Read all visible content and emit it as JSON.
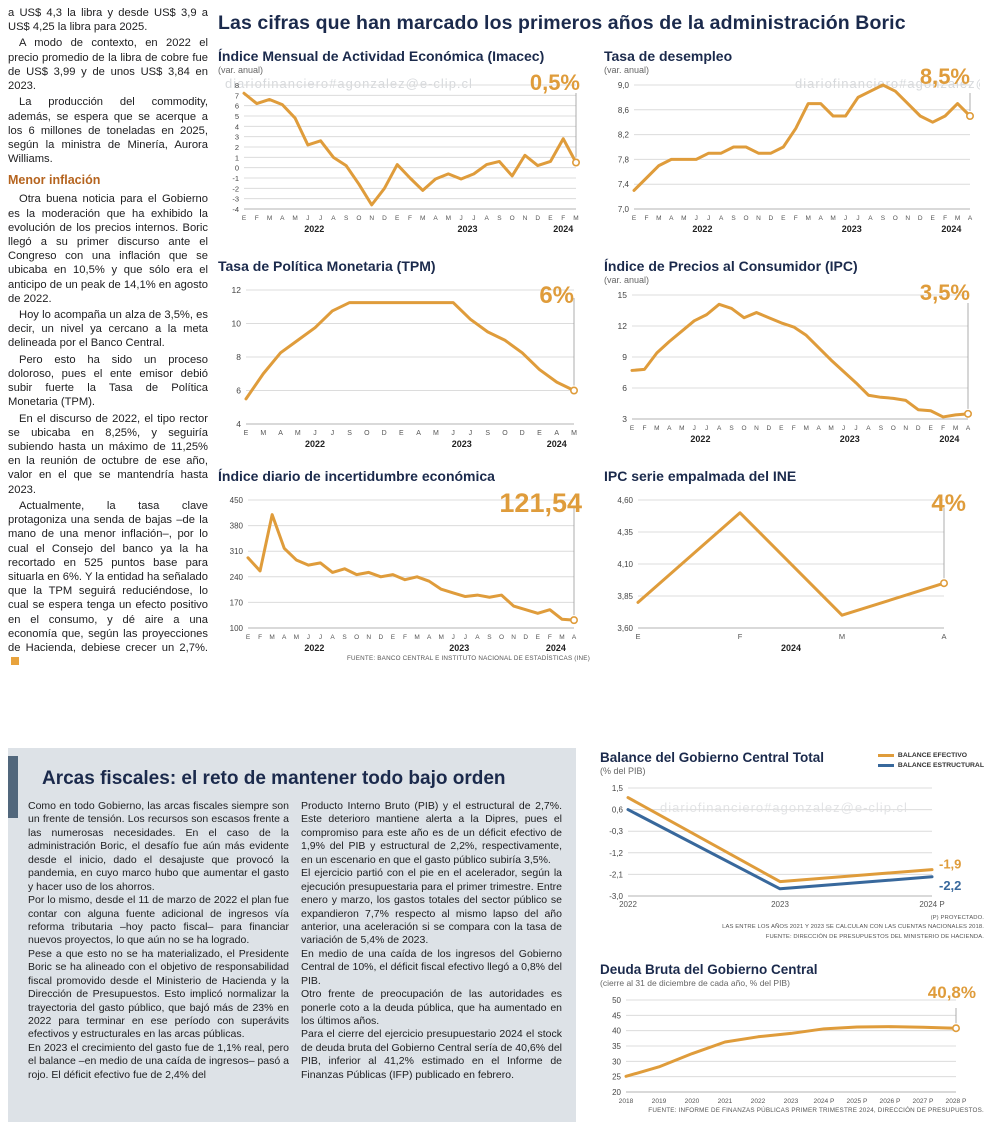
{
  "headline": "Las cifras que han marcado los primeros años de la administración Boric",
  "watermark": "diariofinanciero#agonzalez@e-clip.cl",
  "left_column": {
    "subheading": "Menor inflación",
    "paragraphs": [
      "a US$ 4,3 la libra y desde US$ 3,9 a US$ 4,25 la libra para 2025.",
      "A modo de contexto, en 2022 el precio promedio de la libra de cobre fue de US$ 3,99 y de unos US$ 3,84 en 2023.",
      "La producción del commodity, además, se espera que se acerque a los 6 millones de toneladas en 2025, según la ministra de Minería, Aurora Williams.",
      "Otra buena noticia para el Gobierno es la moderación que ha exhibido la evolución de los precios internos. Boric llegó a su primer discurso ante el Congreso con una inflación que se ubicaba en 10,5% y que sólo era el anticipo de un peak de 14,1% en agosto de 2022.",
      "Hoy lo acompaña un alza de 3,5%, es decir, un nivel ya cercano a la meta delineada por el Banco Central.",
      "Pero esto ha sido un proceso doloroso, pues el ente emisor debió subir fuerte la Tasa de Política Monetaria (TPM).",
      "En el discurso de 2022, el tipo rector se ubicaba en 8,25%, y seguiría subiendo hasta un máximo de 11,25% en la reunión de octubre de ese año, valor en el que se mantendría hasta 2023.",
      "Actualmente, la tasa clave protagoniza una senda de bajas –de la mano de una menor inflación–, por lo cual el Consejo del banco ya la ha recortado en 525 puntos base para situarla en 6%. Y la entidad ha señalado que la TPM seguirá reduciéndose, lo cual se espera tenga un efecto positivo en el consumo, y dé aire a una economía que, según las proyecciones de Hacienda, debiese crecer un 2,7%."
    ]
  },
  "arcas": {
    "title": "Arcas fiscales: el reto de mantener todo bajo orden",
    "col1": [
      "Como en todo Gobierno, las arcas fiscales siempre son un frente de tensión. Los recursos son escasos frente a las numerosas necesidades. En el caso de la administración Boric, el desafío fue aún más evidente desde el inicio, dado el desajuste que provocó la pandemia, en cuyo marco hubo que aumentar el gasto y hacer uso de los ahorros.",
      "Por lo mismo, desde el 11 de marzo de 2022 el plan fue contar con alguna fuente adicional de ingresos vía reforma tributaria –hoy pacto fiscal– para financiar nuevos proyectos, lo que aún no se ha logrado.",
      "Pese a que esto no se ha materializado, el Presidente Boric se ha alineado con el objetivo de responsabilidad fiscal promovido desde el Ministerio de Hacienda y la Dirección de Presupuestos. Esto implicó normalizar la trayectoria del gasto público, que bajó más de 23% en 2022 para terminar en ese período con superávits efectivos y estructurales en las arcas públicas.",
      "En 2023 el crecimiento del gasto fue de 1,1% real, pero el balance –en medio de una caída de ingresos– pasó a rojo. El déficit efectivo fue de 2,4% del"
    ],
    "col2": [
      "Producto Interno Bruto (PIB) y el estructural de 2,7%. Este deterioro mantiene alerta a la Dipres, pues el compromiso para este año es de un déficit efectivo de 1,9% del PIB y estructural de 2,2%, respectivamente, en un escenario en que el gasto público subiría 3,5%.",
      "El ejercicio partió con el pie en el acelerador, según la ejecución presupuestaria para el primer trimestre. Entre enero y marzo, los gastos totales del sector público se expandieron 7,7% respecto al mismo lapso del año anterior, una aceleración si se compara con la tasa de variación de 5,4% de 2023.",
      "En medio de una caída de los ingresos del Gobierno Central de 10%, el déficit fiscal efectivo llegó a 0,8% del PIB.",
      "Otro frente de preocupación de las autoridades es ponerle coto a la deuda pública, que ha aumentado en los últimos años.",
      "Para el cierre del ejercicio presupuestario 2024 el stock de deuda bruta del Gobierno Central sería de 40,6% del PIB, inferior al 41,2% estimado en el Informe de Finanzas Públicas (IFP) publicado en febrero."
    ]
  },
  "legend": {
    "efectivo": "BALANCE EFECTIVO",
    "estructural": "BALANCE ESTRUCTURAL"
  },
  "sources": {
    "top_charts": "FUENTE: BANCO CENTRAL E INSTITUTO NACIONAL DE ESTADÍSTICAS (INE)",
    "balance_note1": "(P) PROYECTADO.",
    "balance_note2": "LAS ENTRE LOS AÑOS 2021 Y 2023 SE CALCULAN CON LAS CUENTAS NACIONALES 2018.",
    "balance_note3": "FUENTE: DIRECCIÓN DE PRESUPUESTOS DEL MINISTERIO DE HACIENDA.",
    "deuda_source": "FUENTE: INFORME DE FINANZAS PÚBLICAS PRIMER TRIMESTRE 2024, DIRECCIÓN DE PRESUPUESTOS."
  },
  "colors": {
    "accent_orange": "#df9c3b",
    "accent_blue": "#38689c",
    "headline_navy": "#1b2a4c",
    "gray_box": "#dde2e7"
  },
  "chart_data": [
    {
      "type": "line",
      "title": "Índice Mensual de Actividad Económica (Imacec)",
      "subtitle": "(var. anual)",
      "callout": "0,5%",
      "ylim": [
        -4,
        8
      ],
      "yticks": [
        8,
        7,
        6,
        5,
        4,
        3,
        2,
        1,
        0,
        -1,
        -2,
        -3,
        -4
      ],
      "ytick_labels": [
        "8",
        "7",
        "6",
        "5",
        "4",
        "3",
        "2",
        "1",
        "0",
        "-1",
        "-2",
        "-3",
        "-4"
      ],
      "xlabels": [
        "E",
        "F",
        "M",
        "A",
        "M",
        "J",
        "J",
        "A",
        "S",
        "O",
        "N",
        "D",
        "E",
        "F",
        "M",
        "A",
        "M",
        "J",
        "J",
        "A",
        "S",
        "O",
        "N",
        "D",
        "E",
        "F",
        "M"
      ],
      "years": [
        {
          "label": "2022",
          "s": 0,
          "e": 11
        },
        {
          "label": "2023",
          "s": 12,
          "e": 23
        },
        {
          "label": "2024",
          "s": 24,
          "e": 26
        }
      ],
      "series": [
        {
          "name": "Imacec",
          "color": "#df9c3b",
          "values": [
            7.2,
            6.2,
            6.6,
            6.1,
            4.8,
            2.2,
            2.6,
            1.0,
            0.2,
            -1.6,
            -3.6,
            -2.0,
            0.3,
            -1.0,
            -2.2,
            -1.1,
            -0.6,
            -1.1,
            -0.6,
            0.3,
            0.6,
            -0.8,
            1.2,
            0.2,
            0.6,
            2.8,
            0.5
          ]
        }
      ],
      "pad": [
        26,
        8,
        14,
        26
      ],
      "yfs": 7.5
    },
    {
      "type": "line",
      "title": "Tasa de desempleo",
      "subtitle": "(var. anual)",
      "callout": "8,5%",
      "ylim": [
        7.0,
        9.0
      ],
      "yticks": [
        9.0,
        8.6,
        8.2,
        7.8,
        7.4,
        7.0
      ],
      "ytick_labels": [
        "9,0",
        "8,6",
        "8,2",
        "7,8",
        "7,4",
        "7,0"
      ],
      "xlabels": [
        "E",
        "F",
        "M",
        "A",
        "M",
        "J",
        "J",
        "A",
        "S",
        "O",
        "N",
        "D",
        "E",
        "F",
        "M",
        "A",
        "M",
        "J",
        "J",
        "A",
        "S",
        "O",
        "N",
        "D",
        "E",
        "F",
        "M",
        "A"
      ],
      "years": [
        {
          "label": "2022",
          "s": 0,
          "e": 11
        },
        {
          "label": "2023",
          "s": 12,
          "e": 23
        },
        {
          "label": "2024",
          "s": 24,
          "e": 27
        }
      ],
      "series": [
        {
          "name": "Desempleo",
          "color": "#df9c3b",
          "values": [
            7.3,
            7.5,
            7.7,
            7.8,
            7.8,
            7.8,
            7.9,
            7.9,
            8.0,
            8.0,
            7.9,
            7.9,
            8.0,
            8.3,
            8.7,
            8.7,
            8.5,
            8.5,
            8.8,
            8.9,
            9.0,
            8.9,
            8.7,
            8.5,
            8.4,
            8.5,
            8.7,
            8.5
          ]
        }
      ],
      "pad": [
        30,
        8,
        14,
        26
      ],
      "yfs": 8
    },
    {
      "type": "line",
      "title": "Tasa de Política Monetaria (TPM)",
      "subtitle": "",
      "callout": "6%",
      "ylim": [
        4,
        12
      ],
      "yticks": [
        12,
        10,
        8,
        6,
        4
      ],
      "ytick_labels": [
        "12",
        "10",
        "8",
        "6",
        "4"
      ],
      "xlabels": [
        "E",
        "M",
        "A",
        "M",
        "J",
        "J",
        "S",
        "O",
        "D",
        "E",
        "A",
        "M",
        "J",
        "J",
        "S",
        "O",
        "D",
        "E",
        "A",
        "M"
      ],
      "years": [
        {
          "label": "2022",
          "s": 0,
          "e": 8
        },
        {
          "label": "2023",
          "s": 9,
          "e": 16
        },
        {
          "label": "2024",
          "s": 17,
          "e": 19
        }
      ],
      "series": [
        {
          "name": "TPM",
          "color": "#df9c3b",
          "values": [
            5.5,
            7.0,
            8.25,
            9.0,
            9.75,
            10.75,
            11.25,
            11.25,
            11.25,
            11.25,
            11.25,
            11.25,
            11.25,
            10.25,
            9.5,
            9.0,
            8.25,
            7.25,
            6.5,
            6.0
          ]
        }
      ],
      "pad": [
        28,
        10,
        16,
        26
      ],
      "yfs": 8.5,
      "xfs": 7
    },
    {
      "type": "line",
      "title": "Índice de Precios al Consumidor (IPC)",
      "subtitle": "(var. anual)",
      "callout": "3,5%",
      "ylim": [
        3,
        15
      ],
      "yticks": [
        15,
        12,
        9,
        6,
        3
      ],
      "ytick_labels": [
        "15",
        "12",
        "9",
        "6",
        "3"
      ],
      "xlabels": [
        "E",
        "F",
        "M",
        "A",
        "M",
        "J",
        "J",
        "A",
        "S",
        "O",
        "N",
        "D",
        "E",
        "F",
        "M",
        "A",
        "M",
        "J",
        "J",
        "A",
        "S",
        "O",
        "N",
        "D",
        "E",
        "F",
        "M",
        "A"
      ],
      "years": [
        {
          "label": "2022",
          "s": 0,
          "e": 11
        },
        {
          "label": "2023",
          "s": 12,
          "e": 23
        },
        {
          "label": "2024",
          "s": 24,
          "e": 27
        }
      ],
      "series": [
        {
          "name": "IPC",
          "color": "#df9c3b",
          "values": [
            7.7,
            7.8,
            9.4,
            10.5,
            11.5,
            12.5,
            13.1,
            14.1,
            13.7,
            12.8,
            13.3,
            12.8,
            12.3,
            11.9,
            11.1,
            9.9,
            8.7,
            7.6,
            6.5,
            5.3,
            5.1,
            5.0,
            4.8,
            3.9,
            3.8,
            3.2,
            3.4,
            3.5
          ]
        }
      ],
      "pad": [
        28,
        8,
        16,
        26
      ],
      "yfs": 8.5
    },
    {
      "type": "line",
      "title": "Índice diario de incertidumbre económica",
      "subtitle": "",
      "callout": "121,54",
      "ylim": [
        100,
        450
      ],
      "yticks": [
        450,
        380,
        310,
        240,
        170,
        100
      ],
      "ytick_labels": [
        "450",
        "380",
        "310",
        "240",
        "170",
        "100"
      ],
      "xlabels": [
        "E",
        "F",
        "M",
        "A",
        "M",
        "J",
        "J",
        "A",
        "S",
        "O",
        "N",
        "D",
        "E",
        "F",
        "M",
        "A",
        "M",
        "J",
        "J",
        "A",
        "S",
        "O",
        "N",
        "D",
        "E",
        "F",
        "M",
        "A"
      ],
      "years": [
        {
          "label": "2022",
          "s": 0,
          "e": 11
        },
        {
          "label": "2023",
          "s": 12,
          "e": 23
        },
        {
          "label": "2024",
          "s": 24,
          "e": 27
        }
      ],
      "series": [
        {
          "name": "Incertidumbre",
          "color": "#df9c3b",
          "values": [
            292,
            256,
            410,
            318,
            286,
            272,
            278,
            252,
            262,
            246,
            252,
            240,
            246,
            232,
            240,
            228,
            206,
            196,
            186,
            190,
            184,
            190,
            160,
            150,
            140,
            150,
            124,
            121.54
          ]
        }
      ],
      "pad": [
        30,
        10,
        16,
        26
      ],
      "yfs": 8
    },
    {
      "type": "line",
      "title": "IPC serie empalmada del INE",
      "subtitle": "",
      "callout": "4%",
      "ylim": [
        3.6,
        4.6
      ],
      "yticks": [
        4.6,
        4.35,
        4.1,
        3.85,
        3.6
      ],
      "ytick_labels": [
        "4,60",
        "4,35",
        "4,10",
        "3,85",
        "3,60"
      ],
      "xlabels": [
        "E",
        "F",
        "M",
        "A"
      ],
      "years": [
        {
          "label": "2024",
          "s": 0,
          "e": 3
        }
      ],
      "series": [
        {
          "name": "IPC INE",
          "color": "#df9c3b",
          "values": [
            3.8,
            4.5,
            3.7,
            3.95
          ]
        }
      ],
      "pad": [
        34,
        10,
        40,
        26
      ],
      "yfs": 8,
      "xfs": 7.5
    },
    {
      "type": "line",
      "title": "Balance del Gobierno Central Total",
      "subtitle": "(% del PIB)",
      "ylim": [
        -3.0,
        1.5
      ],
      "yticks": [
        1.5,
        0.6,
        -0.3,
        -1.2,
        -2.1,
        -3.0
      ],
      "ytick_labels": [
        "1,5",
        "0,6",
        "-0,3",
        "-1,2",
        "-2,1",
        "-3,0"
      ],
      "xlabels": [
        "2022",
        "2023",
        "2024 P"
      ],
      "years": [],
      "series": [
        {
          "name": "Balance efectivo",
          "color": "#df9c3b",
          "values": [
            1.1,
            -2.4,
            -1.9
          ]
        },
        {
          "name": "Balance estructural",
          "color": "#38689c",
          "values": [
            0.6,
            -2.7,
            -2.2
          ]
        }
      ],
      "end_labels": [
        {
          "si": 0,
          "text": "-1,9",
          "dy": -1
        },
        {
          "si": 1,
          "text": "-2,2",
          "dy": 13
        }
      ],
      "vline": false,
      "marker": false,
      "pad": [
        28,
        8,
        52,
        16
      ],
      "yfs": 8,
      "xfs": 8,
      "legend_pos": "top-right"
    },
    {
      "type": "line",
      "title": "Deuda Bruta del Gobierno Central",
      "subtitle": "(cierre al 31 de diciembre de cada año, % del PIB)",
      "callout": "40,8%",
      "ylim": [
        20,
        50
      ],
      "yticks": [
        50,
        45,
        40,
        35,
        30,
        25,
        20
      ],
      "ytick_labels": [
        "50",
        "45",
        "40",
        "35",
        "30",
        "25",
        "20"
      ],
      "xlabels": [
        "2018",
        "2019",
        "2020",
        "2021",
        "2022",
        "2023",
        "2024 P",
        "2025 P",
        "2026 P",
        "2027 P",
        "2028 P"
      ],
      "years": [],
      "series": [
        {
          "name": "Deuda bruta",
          "color": "#df9c3b",
          "values": [
            25.1,
            28.2,
            32.5,
            36.3,
            38.0,
            39.1,
            40.6,
            41.2,
            41.3,
            41.1,
            40.8
          ]
        }
      ],
      "pad": [
        26,
        10,
        28,
        14
      ],
      "yfs": 8,
      "xfs": 6.6
    }
  ]
}
